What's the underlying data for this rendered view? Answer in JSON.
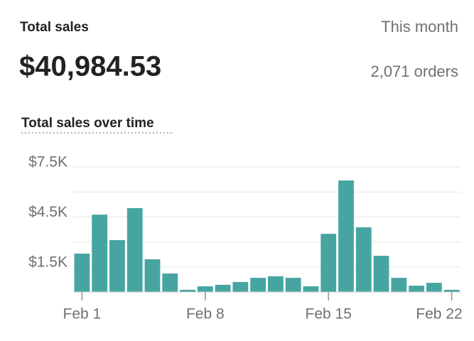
{
  "header": {
    "title": "Total sales",
    "period": "This month",
    "total": "$40,984.53",
    "orders": "2,071 orders"
  },
  "chart_data": {
    "type": "bar",
    "title": "Total sales over time",
    "categories": [
      "Feb 1",
      null,
      null,
      null,
      null,
      null,
      null,
      "Feb 8",
      null,
      null,
      null,
      null,
      null,
      null,
      "Feb 15",
      null,
      null,
      null,
      null,
      null,
      null,
      "Feb 22"
    ],
    "values": [
      2300,
      4640,
      3110,
      5030,
      1960,
      1110,
      130,
      340,
      430,
      600,
      850,
      940,
      850,
      340,
      3490,
      6690,
      3880,
      2170,
      850,
      380,
      550,
      130
    ],
    "color": "#47a5a1",
    "ylim": [
      0,
      7500
    ],
    "yticks": [
      {
        "value": 1500,
        "label": "$1.5K"
      },
      {
        "value": 4500,
        "label": "$4.5K"
      },
      {
        "value": 7500,
        "label": "$7.5K"
      }
    ],
    "minor_yticks": [
      0,
      3000,
      6000
    ],
    "grid": true
  }
}
